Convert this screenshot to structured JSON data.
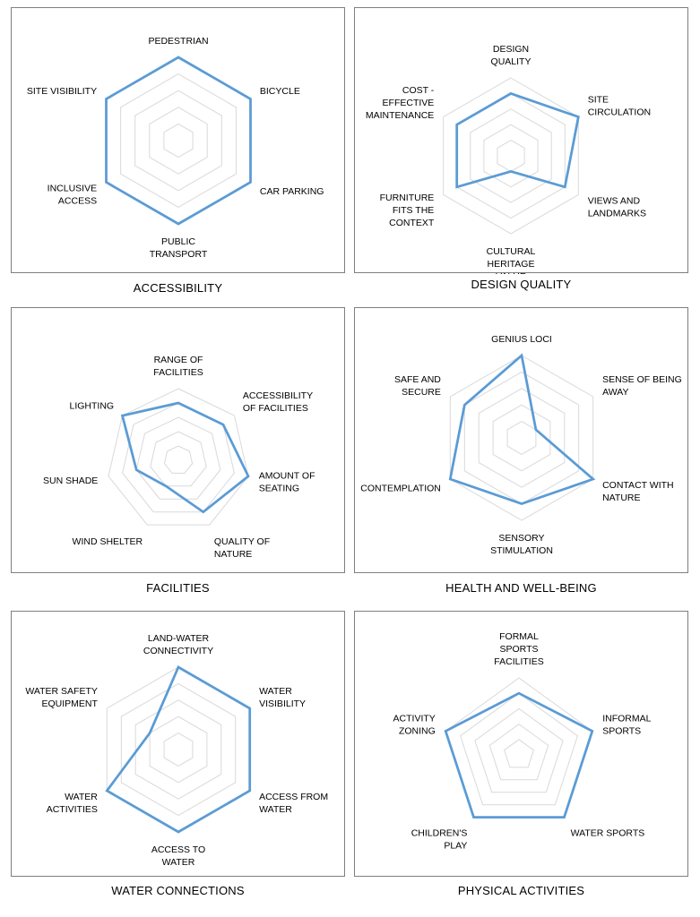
{
  "chart_data": [
    {
      "type": "radar",
      "caption": "ACCESSIBILITY",
      "axes": [
        {
          "label": [
            "PEDESTRIAN"
          ],
          "value": 5
        },
        {
          "label": [
            "BICYCLE"
          ],
          "value": 5
        },
        {
          "label": [
            "CAR PARKING"
          ],
          "value": 5
        },
        {
          "label": [
            "PUBLIC",
            "TRANSPORT"
          ],
          "value": 5
        },
        {
          "label": [
            "INCLUSIVE",
            "ACCESS"
          ],
          "value": 5
        },
        {
          "label": [
            "SITE VISIBILITY"
          ],
          "value": 5
        }
      ],
      "rmax": 5,
      "rings": 5,
      "series_color": "#5b9bd5"
    },
    {
      "type": "radar",
      "caption": "DESIGN QUALITY",
      "axes": [
        {
          "label": [
            "DESIGN",
            "QUALITY"
          ],
          "value": 4
        },
        {
          "label": [
            "SITE",
            "CIRCULATION"
          ],
          "value": 5
        },
        {
          "label": [
            "VIEWS AND",
            "LANDMARKS"
          ],
          "value": 4
        },
        {
          "label": [
            "CULTURAL",
            "HERITAGE",
            "VALUE"
          ],
          "value": 1
        },
        {
          "label": [
            "FURNITURE",
            "FITS THE",
            "CONTEXT"
          ],
          "value": 4
        },
        {
          "label": [
            "COST -",
            "EFFECTIVE",
            "MAINTENANCE"
          ],
          "value": 4
        }
      ],
      "rmax": 5,
      "rings": 5,
      "series_color": "#5b9bd5"
    },
    {
      "type": "radar",
      "caption": "FACILITIES",
      "axes": [
        {
          "label": [
            "RANGE OF",
            "FACILITIES"
          ],
          "value": 4
        },
        {
          "label": [
            "ACCESSIBILITY",
            "OF FACILITIES"
          ],
          "value": 4
        },
        {
          "label": [
            "AMOUNT OF",
            "SEATING"
          ],
          "value": 5
        },
        {
          "label": [
            "QUALITY OF",
            "NATURE"
          ],
          "value": 4
        },
        {
          "label": [
            "WIND SHELTER"
          ],
          "value": 2
        },
        {
          "label": [
            "SUN SHADE"
          ],
          "value": 3
        },
        {
          "label": [
            "LIGHTING"
          ],
          "value": 5
        }
      ],
      "rmax": 5,
      "rings": 5,
      "series_color": "#5b9bd5"
    },
    {
      "type": "radar",
      "caption": "HEALTH AND WELL-BEING",
      "axes": [
        {
          "label": [
            "GENIUS LOCI"
          ],
          "value": 5
        },
        {
          "label": [
            "SENSE OF BEING",
            "AWAY"
          ],
          "value": 1
        },
        {
          "label": [
            "CONTACT WITH",
            "NATURE"
          ],
          "value": 5
        },
        {
          "label": [
            "SENSORY",
            "STIMULATION"
          ],
          "value": 4
        },
        {
          "label": [
            "CONTEMPLATION"
          ],
          "value": 5
        },
        {
          "label": [
            "SAFE AND",
            "SECURE"
          ],
          "value": 4
        }
      ],
      "rmax": 5,
      "rings": 5,
      "series_color": "#5b9bd5"
    },
    {
      "type": "radar",
      "caption": "WATER CONNECTIONS",
      "axes": [
        {
          "label": [
            "LAND-WATER",
            "CONNECTIVITY"
          ],
          "value": 5
        },
        {
          "label": [
            "WATER",
            "VISIBILITY"
          ],
          "value": 5
        },
        {
          "label": [
            "ACCESS FROM",
            "WATER"
          ],
          "value": 5
        },
        {
          "label": [
            "ACCESS TO",
            "WATER"
          ],
          "value": 5
        },
        {
          "label": [
            "WATER",
            "ACTIVITIES"
          ],
          "value": 5
        },
        {
          "label": [
            "WATER SAFETY",
            "EQUIPMENT"
          ],
          "value": 2
        }
      ],
      "rmax": 5,
      "rings": 5,
      "series_color": "#5b9bd5"
    },
    {
      "type": "radar",
      "caption": "PHYSICAL ACTIVITIES",
      "axes": [
        {
          "label": [
            "FORMAL",
            "SPORTS",
            "FACILITIES"
          ],
          "value": 4
        },
        {
          "label": [
            "INFORMAL",
            "SPORTS"
          ],
          "value": 5
        },
        {
          "label": [
            "WATER SPORTS"
          ],
          "value": 5
        },
        {
          "label": [
            "CHILDREN'S",
            "PLAY"
          ],
          "value": 5
        },
        {
          "label": [
            "ACTIVITY",
            "ZONING"
          ],
          "value": 5
        }
      ],
      "rmax": 5,
      "rings": 5,
      "series_color": "#5b9bd5"
    }
  ]
}
